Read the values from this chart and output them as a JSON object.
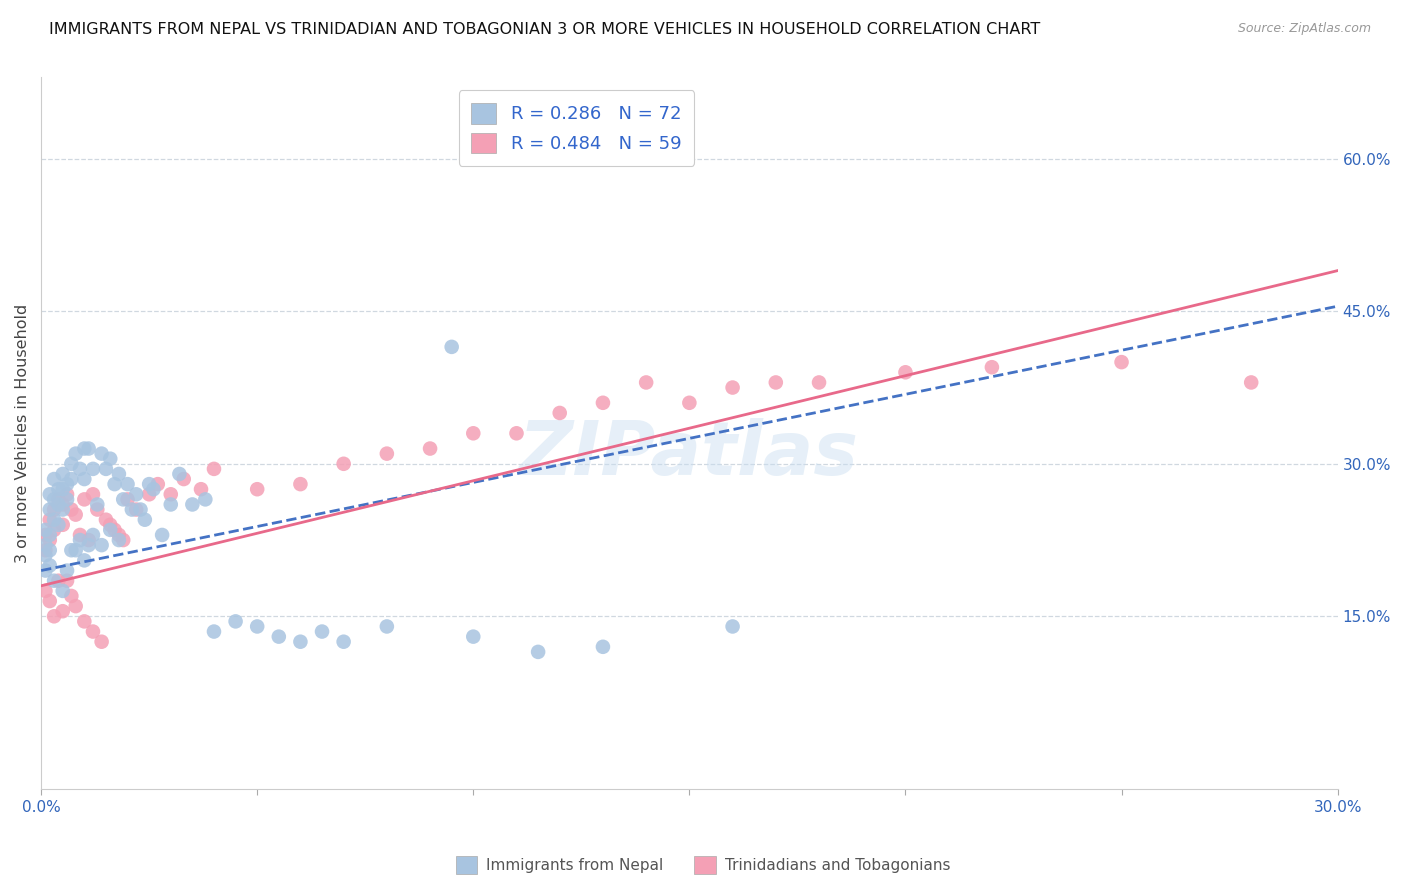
{
  "title": "IMMIGRANTS FROM NEPAL VS TRINIDADIAN AND TOBAGONIAN 3 OR MORE VEHICLES IN HOUSEHOLD CORRELATION CHART",
  "source": "Source: ZipAtlas.com",
  "ylabel": "3 or more Vehicles in Household",
  "xlim": [
    0.0,
    0.3
  ],
  "ylim": [
    -0.02,
    0.68
  ],
  "xticks": [
    0.0,
    0.05,
    0.1,
    0.15,
    0.2,
    0.25,
    0.3
  ],
  "xtick_labels": [
    "0.0%",
    "",
    "",
    "",
    "",
    "",
    "30.0%"
  ],
  "yticks_right": [
    0.15,
    0.3,
    0.45,
    0.6
  ],
  "ytick_right_labels": [
    "15.0%",
    "30.0%",
    "45.0%",
    "60.0%"
  ],
  "legend_nepal_R": "0.286",
  "legend_nepal_N": "72",
  "legend_tt_R": "0.484",
  "legend_tt_N": "59",
  "nepal_color": "#a8c4e0",
  "tt_color": "#f4a0b5",
  "nepal_line_color": "#4472c4",
  "tt_line_color": "#e8698a",
  "watermark": "ZIPatlas",
  "nepal_scatter_x": [
    0.001,
    0.001,
    0.001,
    0.001,
    0.002,
    0.002,
    0.002,
    0.002,
    0.002,
    0.003,
    0.003,
    0.003,
    0.003,
    0.004,
    0.004,
    0.004,
    0.005,
    0.005,
    0.005,
    0.005,
    0.006,
    0.006,
    0.006,
    0.007,
    0.007,
    0.007,
    0.008,
    0.008,
    0.009,
    0.009,
    0.01,
    0.01,
    0.01,
    0.011,
    0.011,
    0.012,
    0.012,
    0.013,
    0.014,
    0.014,
    0.015,
    0.016,
    0.016,
    0.017,
    0.018,
    0.018,
    0.019,
    0.02,
    0.021,
    0.022,
    0.023,
    0.024,
    0.025,
    0.026,
    0.028,
    0.03,
    0.032,
    0.035,
    0.038,
    0.04,
    0.045,
    0.05,
    0.055,
    0.06,
    0.065,
    0.07,
    0.08,
    0.095,
    0.1,
    0.115,
    0.13,
    0.16
  ],
  "nepal_scatter_y": [
    0.235,
    0.22,
    0.21,
    0.195,
    0.27,
    0.255,
    0.23,
    0.215,
    0.2,
    0.285,
    0.265,
    0.245,
    0.185,
    0.275,
    0.26,
    0.24,
    0.29,
    0.275,
    0.255,
    0.175,
    0.28,
    0.265,
    0.195,
    0.3,
    0.285,
    0.215,
    0.31,
    0.215,
    0.295,
    0.225,
    0.315,
    0.285,
    0.205,
    0.315,
    0.22,
    0.295,
    0.23,
    0.26,
    0.31,
    0.22,
    0.295,
    0.305,
    0.235,
    0.28,
    0.29,
    0.225,
    0.265,
    0.28,
    0.255,
    0.27,
    0.255,
    0.245,
    0.28,
    0.275,
    0.23,
    0.26,
    0.29,
    0.26,
    0.265,
    0.135,
    0.145,
    0.14,
    0.13,
    0.125,
    0.135,
    0.125,
    0.14,
    0.415,
    0.13,
    0.115,
    0.12,
    0.14
  ],
  "tt_scatter_x": [
    0.001,
    0.001,
    0.001,
    0.002,
    0.002,
    0.002,
    0.003,
    0.003,
    0.003,
    0.004,
    0.004,
    0.005,
    0.005,
    0.005,
    0.006,
    0.006,
    0.007,
    0.007,
    0.008,
    0.008,
    0.009,
    0.01,
    0.01,
    0.011,
    0.012,
    0.012,
    0.013,
    0.014,
    0.015,
    0.016,
    0.017,
    0.018,
    0.019,
    0.02,
    0.022,
    0.025,
    0.027,
    0.03,
    0.033,
    0.037,
    0.04,
    0.05,
    0.06,
    0.07,
    0.08,
    0.09,
    0.1,
    0.11,
    0.12,
    0.13,
    0.14,
    0.16,
    0.18,
    0.2,
    0.22,
    0.25,
    0.28,
    0.15,
    0.17
  ],
  "tt_scatter_y": [
    0.23,
    0.215,
    0.175,
    0.245,
    0.225,
    0.165,
    0.255,
    0.235,
    0.15,
    0.265,
    0.185,
    0.26,
    0.24,
    0.155,
    0.27,
    0.185,
    0.255,
    0.17,
    0.25,
    0.16,
    0.23,
    0.265,
    0.145,
    0.225,
    0.27,
    0.135,
    0.255,
    0.125,
    0.245,
    0.24,
    0.235,
    0.23,
    0.225,
    0.265,
    0.255,
    0.27,
    0.28,
    0.27,
    0.285,
    0.275,
    0.295,
    0.275,
    0.28,
    0.3,
    0.31,
    0.315,
    0.33,
    0.33,
    0.35,
    0.36,
    0.38,
    0.375,
    0.38,
    0.39,
    0.395,
    0.4,
    0.38,
    0.36,
    0.38
  ],
  "nepal_line_x": [
    0.0,
    0.3
  ],
  "nepal_line_y": [
    0.195,
    0.455
  ],
  "tt_line_x": [
    0.0,
    0.3
  ],
  "tt_line_y": [
    0.18,
    0.49
  ]
}
